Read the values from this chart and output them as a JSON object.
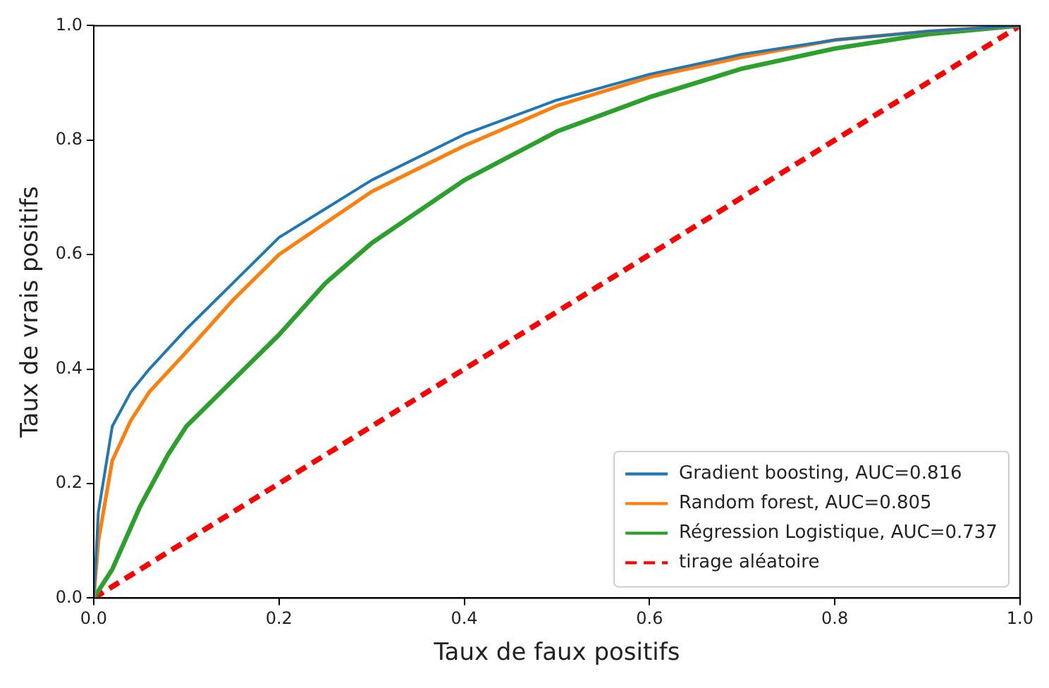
{
  "chart_data": {
    "type": "line",
    "xlabel": "Taux de faux positifs",
    "ylabel": "Taux de vrais positifs",
    "xlim": [
      0,
      1
    ],
    "ylim": [
      0,
      1
    ],
    "xticks": [
      {
        "value": 0,
        "label": "0.0"
      },
      {
        "value": 0.2,
        "label": "0.2"
      },
      {
        "value": 0.4,
        "label": "0.4"
      },
      {
        "value": 0.6,
        "label": "0.6"
      },
      {
        "value": 0.8,
        "label": "0.8"
      },
      {
        "value": 1,
        "label": "1.0"
      }
    ],
    "yticks": [
      {
        "value": 0,
        "label": "0.0"
      },
      {
        "value": 0.2,
        "label": "0.2"
      },
      {
        "value": 0.4,
        "label": "0.4"
      },
      {
        "value": 0.6,
        "label": "0.6"
      },
      {
        "value": 0.8,
        "label": "0.8"
      },
      {
        "value": 1,
        "label": "1.0"
      }
    ],
    "grid": false,
    "legend": "bottom right",
    "marker": "none",
    "series": [
      {
        "name": "Gradient boosting, AUC=0.816",
        "color": "#1f77b4",
        "x": [
          0,
          0.005,
          0.02,
          0.04,
          0.06,
          0.1,
          0.15,
          0.2,
          0.25,
          0.3,
          0.4,
          0.5,
          0.6,
          0.7,
          0.8,
          0.9,
          1
        ],
        "values": [
          0,
          0.15,
          0.3,
          0.36,
          0.4,
          0.47,
          0.55,
          0.63,
          0.68,
          0.73,
          0.81,
          0.87,
          0.915,
          0.95,
          0.975,
          0.99,
          1
        ]
      },
      {
        "name": "Random forest, AUC=0.805",
        "color": "#ff7f0e",
        "x": [
          0,
          0.005,
          0.02,
          0.04,
          0.06,
          0.1,
          0.15,
          0.2,
          0.3,
          0.4,
          0.5,
          0.6,
          0.7,
          0.8,
          0.9,
          1
        ],
        "values": [
          0,
          0.1,
          0.24,
          0.31,
          0.36,
          0.43,
          0.52,
          0.6,
          0.71,
          0.79,
          0.86,
          0.91,
          0.945,
          0.975,
          0.99,
          1
        ]
      },
      {
        "name": "Régression Logistique, AUC=0.737",
        "color": "#2ca02c",
        "x": [
          0,
          0.02,
          0.05,
          0.08,
          0.1,
          0.15,
          0.2,
          0.25,
          0.3,
          0.4,
          0.5,
          0.6,
          0.7,
          0.8,
          0.9,
          1
        ],
        "values": [
          0,
          0.05,
          0.16,
          0.25,
          0.3,
          0.38,
          0.46,
          0.55,
          0.62,
          0.73,
          0.815,
          0.875,
          0.925,
          0.96,
          0.985,
          1
        ]
      },
      {
        "name": "tirage aléatoire",
        "color": "#ff0000",
        "line_style": "dashed",
        "x": [
          0,
          1
        ],
        "values": [
          0,
          1
        ]
      }
    ]
  }
}
